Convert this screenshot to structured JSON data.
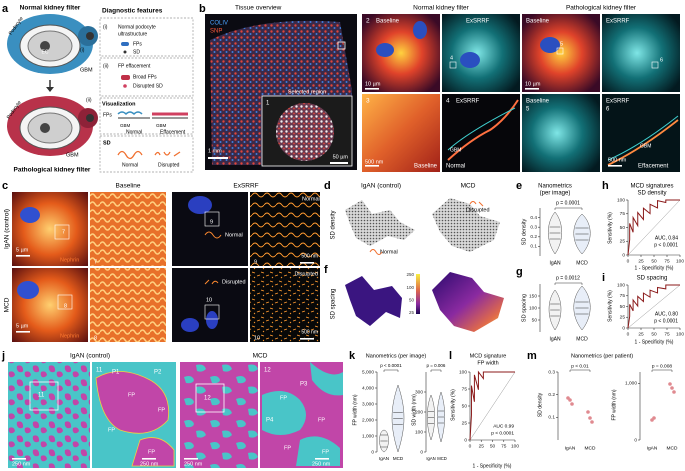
{
  "panels": {
    "a": {
      "letter": "a",
      "labels": [
        "Normal kidney filter",
        "Podocyte",
        "EC",
        "(i)",
        "GBM",
        "Podocyte",
        "(ii)",
        "GBM",
        "Pathological kidney filter",
        "Diagnostic features",
        "(i)",
        "Normal podocyte",
        "ultrastructure",
        "FPs",
        "SD",
        "(ii)",
        "FP effacement",
        "Broad FPs",
        "Disrupted SD",
        "Visualization",
        "FPs",
        "GBM",
        "GBM",
        "Normal",
        "Effacement",
        "SD",
        "Normal",
        "Disrupted"
      ]
    },
    "b": {
      "letter": "b",
      "labels": [
        "Tissue overview",
        "COLIV",
        "SNP",
        "Selected region",
        "1",
        "50 µm",
        "1 mm",
        "Normal kidney filter",
        "Pathological kidney filter",
        "2",
        "Baseline",
        "ExSRRF",
        "10 µm",
        "4",
        "3",
        "500 nm",
        "Baseline",
        "4",
        "ExSRRF",
        "GBM",
        "Normal",
        "Baseline",
        "5",
        "ExSRRF",
        "6",
        "10 µm",
        "Baseline",
        "5",
        "ExSRRF",
        "6",
        "500 nm",
        "GBM",
        "Effacement"
      ]
    },
    "c": {
      "letter": "c",
      "labels": [
        "Baseline",
        "ExSRRF",
        "IgAN (control)",
        "MCD",
        "7",
        "5 µm",
        "Nephrin",
        "7",
        "9",
        "Normal",
        "Normal",
        "500 nm",
        "9",
        "8",
        "5 µm",
        "Nephrin",
        "8",
        "Disrupted",
        "10",
        "Disrupted",
        "500 nm",
        "10"
      ]
    },
    "d": {
      "letter": "d",
      "labels": [
        "IgAN (control)",
        "MCD",
        "SD density",
        "Normal",
        "Disrupted"
      ]
    },
    "e": {
      "letter": "e",
      "labels": [
        "Nanometrics",
        "(per image)",
        "p = 0.0001",
        "SD density",
        "IgAN",
        "MCD"
      ],
      "ylim": [
        0,
        0.5
      ],
      "yticks": [
        0.1,
        0.2,
        0.3,
        0.4
      ]
    },
    "f": {
      "letter": "f",
      "labels": [
        "SD spacing"
      ],
      "colorbar_ticks": [
        250,
        100,
        50,
        25
      ]
    },
    "g": {
      "letter": "g",
      "labels": [
        "p = 0.0012",
        "SD spacing",
        "IgAN",
        "MCD"
      ],
      "ylim": [
        0,
        200
      ],
      "yticks": [
        50,
        100,
        150
      ]
    },
    "h": {
      "letter": "h",
      "labels": [
        "MCD signatures",
        "SD density",
        "Sensitivity (%)",
        "AUC, 0.84",
        "p < 0.0001",
        "1 - Specificity (%)"
      ],
      "xlim": [
        0,
        100
      ],
      "xticks": [
        0,
        25,
        50,
        75,
        100
      ],
      "ylim": [
        0,
        100
      ],
      "yticks": [
        0,
        25,
        50,
        75,
        100
      ]
    },
    "i": {
      "letter": "i",
      "labels": [
        "SD spacing",
        "Sensitivity (%)",
        "AUC, 0.80",
        "p < 0.0001",
        "1 - Specificity (%)"
      ],
      "xlim": [
        0,
        100
      ],
      "xticks": [
        0,
        25,
        50,
        75,
        100
      ],
      "ylim": [
        0,
        100
      ],
      "yticks": [
        0,
        25,
        50,
        75,
        100
      ]
    },
    "j": {
      "letter": "j",
      "labels": [
        "IgAN (control)",
        "MCD",
        "11",
        "250 nm",
        "11",
        "P1",
        "P2",
        "FP",
        "FP",
        "FP",
        "FP",
        "250 nm",
        "12",
        "250 nm",
        "12",
        "P3",
        "P4",
        "FP",
        "FP",
        "FP",
        "FP",
        "250 nm"
      ]
    },
    "k": {
      "letter": "k",
      "labels": [
        "Nanometrics (per image)",
        "p < 0.0001",
        "p = 0.006",
        "FP width (nm)",
        "IgAN",
        "MCD",
        "SD width (nm)",
        "IgAN",
        "MCD"
      ],
      "ylim": [
        0,
        5000
      ],
      "yticks": [
        0,
        {
          "value": 1000,
          "label": "1,000"
        },
        {
          "value": 2000,
          "label": "2,000"
        },
        {
          "value": 3000,
          "label": "3,000"
        },
        {
          "value": 4000,
          "label": "4,000"
        },
        {
          "value": 5000,
          "label": "5,000"
        }
      ],
      "y2lim": [
        0,
        400
      ],
      "y2ticks": [
        0,
        100,
        200,
        300
      ]
    },
    "l": {
      "letter": "l",
      "labels": [
        "MCD signature",
        "FP width",
        "Sensitivity (%)",
        "AUC 0.99",
        "p < 0.0001",
        "1 - Specificity (%)"
      ],
      "xlim": [
        0,
        100
      ],
      "xticks": [
        0,
        25,
        50,
        75,
        100
      ],
      "ylim": [
        0,
        100
      ],
      "yticks": [
        0,
        25,
        50,
        75,
        100
      ]
    },
    "m": {
      "letter": "m",
      "labels": [
        "Nanometrics (per patient)",
        "p < 0.01",
        "p = 0.008",
        "SD density",
        "IgAN",
        "MCD",
        "FP width (nm)",
        "IgAN",
        "MCD"
      ],
      "ylim": [
        0,
        0.3
      ],
      "yticks": [
        0.1,
        0.2,
        0.3
      ],
      "y2lim": [
        0,
        1200
      ],
      "y2ticks": [
        0,
        {
          "value": 1000,
          "label": "1,000"
        }
      ]
    }
  }
}
